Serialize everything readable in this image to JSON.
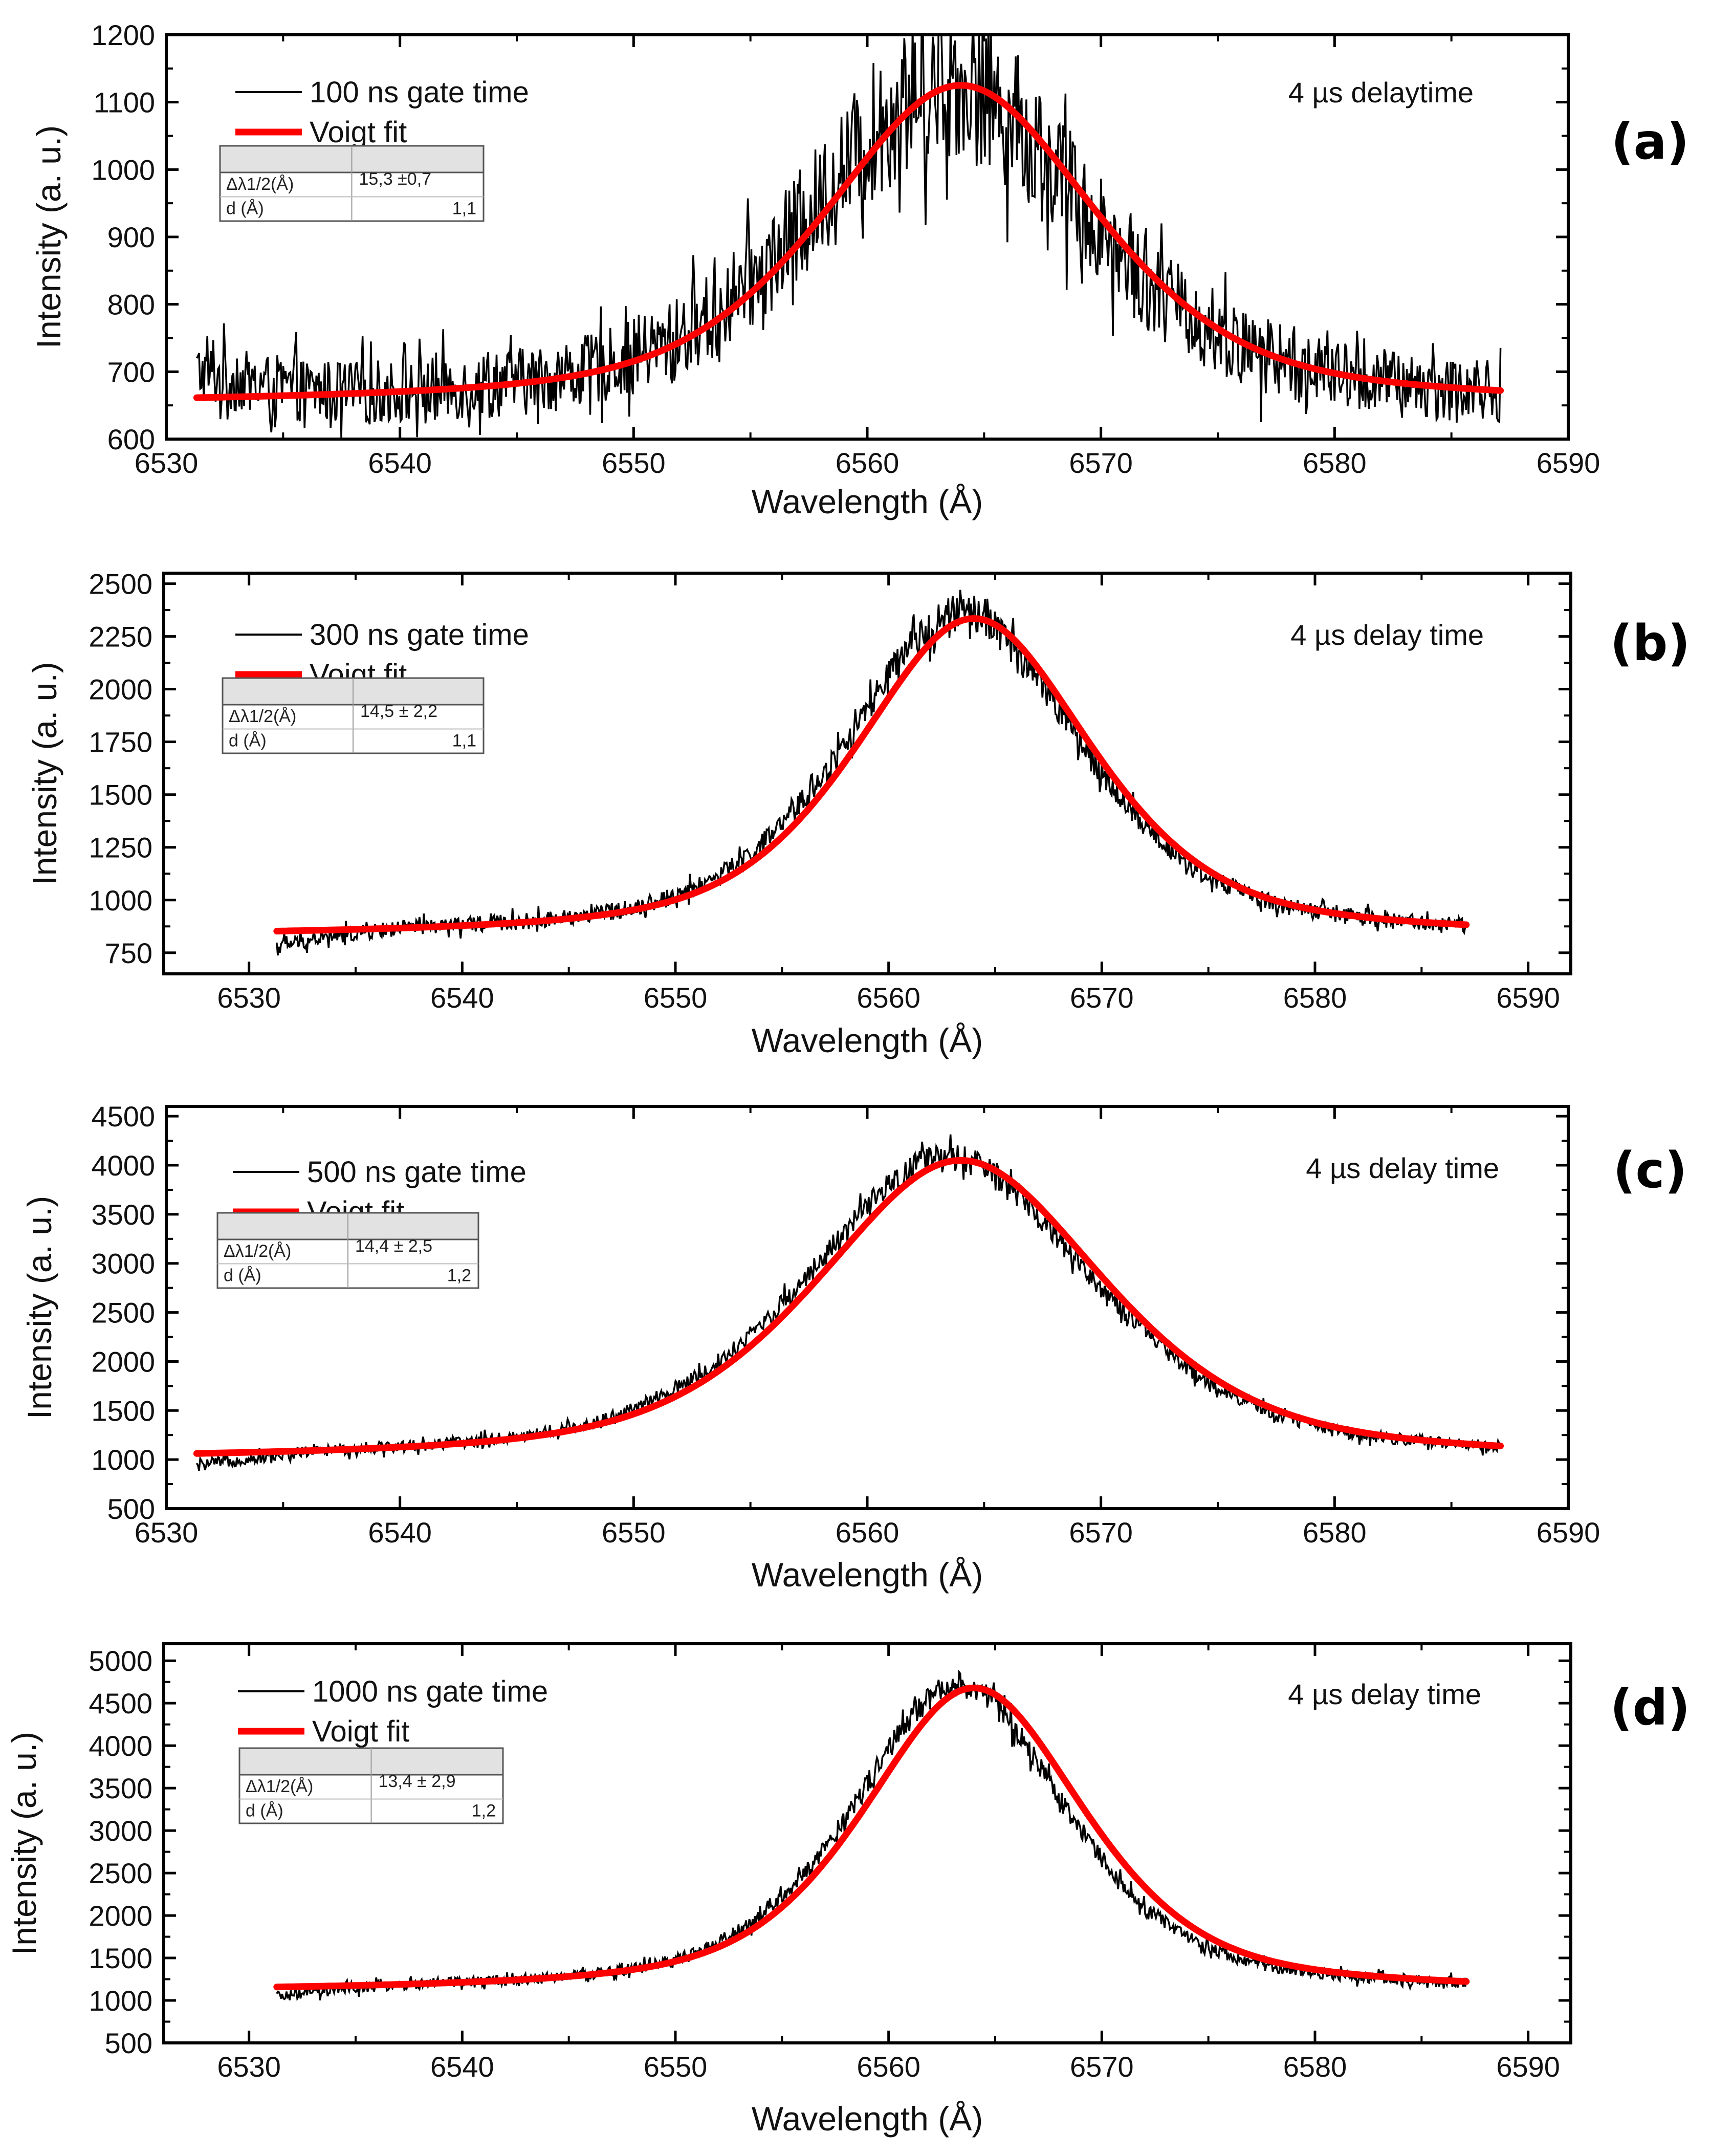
{
  "chart_data": [
    {
      "type": "line",
      "panel_label": "(a)",
      "xlabel": "Wavelength (Å)",
      "ylabel": "Intensity (a. u.)",
      "xlim": [
        6530,
        6590
      ],
      "ylim": [
        600,
        1200
      ],
      "xticks": [
        6530,
        6540,
        6550,
        6560,
        6570,
        6580,
        6590
      ],
      "yticks": [
        600,
        700,
        800,
        900,
        1000,
        1100,
        1200
      ],
      "x_range": [
        6531.3,
        6587.1
      ],
      "legend": [
        "100 ns gate time",
        "Voigt fit"
      ],
      "annotation": "4 µs  delaytime",
      "table": {
        "header": [
          "",
          ""
        ],
        "rows": [
          [
            "Δλ1/2(Å)",
            "15,3 ±0,7"
          ],
          [
            "d (Å)",
            "1,1"
          ]
        ]
      },
      "fit": {
        "center": 6564.0,
        "amplitude": 1125,
        "baseline": 650,
        "width": 7.0,
        "slope": 0.0
      },
      "data": {
        "center": 6563.5,
        "amplitude": 1130,
        "baseline": 650,
        "width": 7.0,
        "start": 700,
        "noise": 45
      },
      "colors": {
        "data": "#000000",
        "fit": "#ff0000"
      }
    },
    {
      "type": "line",
      "panel_label": "(b)",
      "xlabel": "Wavelength (Å)",
      "ylabel": "Intensity (a. u.)",
      "xlim": [
        6526,
        6592
      ],
      "ylim": [
        650,
        2550
      ],
      "xticks": [
        6530,
        6540,
        6550,
        6560,
        6570,
        6580,
        6590
      ],
      "yticks": [
        750,
        1000,
        1250,
        1500,
        1750,
        2000,
        2250,
        2500
      ],
      "x_range": [
        6531.3,
        6587.1
      ],
      "legend": [
        "300 ns gate time",
        "Voigt fit"
      ],
      "annotation": "4 µs delay time",
      "table": {
        "header": [
          "",
          ""
        ],
        "rows": [
          [
            "Δλ1/2(Å)",
            "14,5 ± 2,2"
          ],
          [
            "d (Å)",
            "1,1"
          ]
        ]
      },
      "fit": {
        "center": 6564.0,
        "amplitude": 2335,
        "baseline": 820,
        "width": 6.6,
        "slope": 0.0
      },
      "data": {
        "center": 6563.5,
        "amplitude": 2360,
        "baseline": 820,
        "width": 6.6,
        "start": 780,
        "noise": 35
      },
      "colors": {
        "data": "#000000",
        "fit": "#ff0000"
      }
    },
    {
      "type": "line",
      "panel_label": "(c)",
      "xlabel": "Wavelength (Å)",
      "ylabel": "Intensity (a. u.)",
      "xlim": [
        6530,
        6590
      ],
      "ylim": [
        500,
        4600
      ],
      "xticks": [
        6530,
        6540,
        6550,
        6560,
        6570,
        6580,
        6590
      ],
      "yticks": [
        500,
        1000,
        1500,
        2000,
        2500,
        3000,
        3500,
        4000,
        4500
      ],
      "x_range": [
        6531.3,
        6587.1
      ],
      "legend": [
        "500 ns gate time",
        "Voigt fit"
      ],
      "annotation": "4 µs delay time",
      "table": {
        "header": [
          "",
          ""
        ],
        "rows": [
          [
            "Δλ1/2(Å)",
            "14,4 ± 2,5"
          ],
          [
            "d (Å)",
            "1,2"
          ]
        ]
      },
      "fit": {
        "center": 6564.0,
        "amplitude": 4050,
        "baseline": 980,
        "width": 7.4,
        "slope": 0.0
      },
      "data": {
        "center": 6563.5,
        "amplitude": 4080,
        "baseline": 980,
        "width": 7.4,
        "start": 930,
        "noise": 55
      },
      "colors": {
        "data": "#000000",
        "fit": "#ff0000"
      }
    },
    {
      "type": "line",
      "panel_label": "(d)",
      "xlabel": "Wavelength (Å)",
      "ylabel": "Intensity (a. u.)",
      "xlim": [
        6526,
        6592
      ],
      "ylim": [
        500,
        5200
      ],
      "xticks": [
        6530,
        6540,
        6550,
        6560,
        6570,
        6580,
        6590
      ],
      "yticks": [
        500,
        1000,
        1500,
        2000,
        2500,
        3000,
        3500,
        4000,
        4500,
        5000
      ],
      "x_range": [
        6531.3,
        6587.1
      ],
      "legend": [
        "1000 ns gate time",
        "Voigt fit"
      ],
      "annotation": "4 µs delay  time",
      "table": {
        "header": [
          "",
          ""
        ],
        "rows": [
          [
            "Δλ1/2(Å)",
            "13,4 ± 2,9"
          ],
          [
            "d (Å)",
            "1,2"
          ]
        ]
      },
      "fit": {
        "center": 6564.0,
        "amplitude": 4680,
        "baseline": 1090,
        "width": 6.2,
        "slope": 0.0
      },
      "data": {
        "center": 6563.3,
        "amplitude": 4720,
        "baseline": 1090,
        "width": 6.0,
        "start": 1040,
        "noise": 60
      },
      "colors": {
        "data": "#000000",
        "fit": "#ff0000"
      }
    }
  ]
}
